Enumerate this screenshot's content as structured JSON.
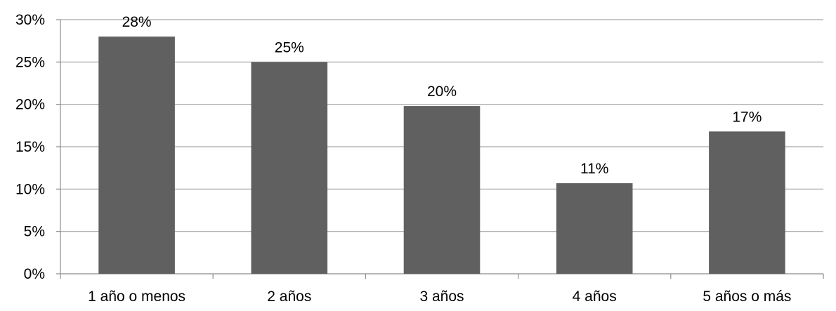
{
  "chart_data": {
    "type": "bar",
    "categories": [
      "1 año o menos",
      "2 años",
      "3 años",
      "4 años",
      "5 años o más"
    ],
    "values": [
      28,
      25,
      19.8,
      10.7,
      16.8
    ],
    "data_labels": [
      "28%",
      "25%",
      "20%",
      "11%",
      "17%"
    ],
    "title": "",
    "xlabel": "",
    "ylabel": "",
    "ylim": [
      0,
      30
    ],
    "yticks": [
      0,
      5,
      10,
      15,
      20,
      25,
      30
    ],
    "ytick_labels": [
      "0%",
      "5%",
      "10%",
      "15%",
      "20%",
      "25%",
      "30%"
    ],
    "grid": true,
    "legend": "none",
    "colors": {
      "bar": "#606060",
      "grid": "#a6a6a6",
      "axis": "#8c8c8c"
    }
  }
}
